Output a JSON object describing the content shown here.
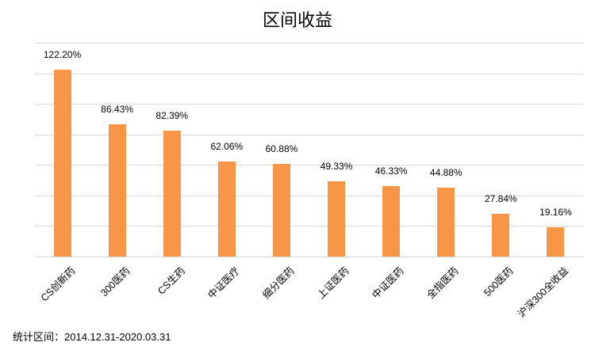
{
  "chart_data": {
    "type": "bar",
    "title": "区间收益",
    "categories": [
      "CS创新药",
      "300医药",
      "CS生药",
      "中证医疗",
      "细分医药",
      "上证医药",
      "中证医药",
      "全指医药",
      "500医药",
      "沪深300全收益"
    ],
    "values": [
      122.2,
      86.43,
      82.39,
      62.06,
      60.88,
      49.33,
      46.33,
      44.88,
      27.84,
      19.16
    ],
    "value_labels": [
      "122.20%",
      "86.43%",
      "82.39%",
      "62.06%",
      "60.88%",
      "49.33%",
      "46.33%",
      "44.88%",
      "27.84%",
      "19.16%"
    ],
    "xlabel": "",
    "ylabel": "",
    "ylim": [
      0,
      140
    ],
    "y_grid_step": 20,
    "grid": true,
    "y_tick_labels_visible": false,
    "legend": "none",
    "bar_color": "#F79646",
    "footnote": "统计区间：2014.12.31-2020.03.31"
  }
}
